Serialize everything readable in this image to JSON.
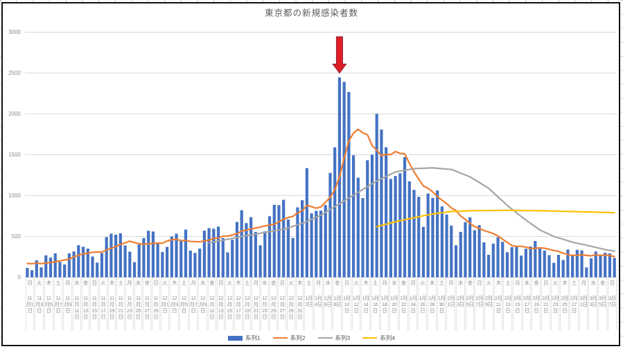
{
  "chart_data": {
    "type": "combo-bar-line",
    "title": "東京都の新規感染者数",
    "y_ticks": [
      0,
      500,
      1000,
      1500,
      2000,
      2500,
      3000
    ],
    "ylim": [
      0,
      3000
    ],
    "n_days": 127,
    "grid_color": "#d9d9d9",
    "axis_text_color": "#8a8a8a",
    "x_labels": [
      [
        "日",
        "11",
        "月1",
        "日"
      ],
      [
        "火",
        "11",
        "月3",
        "日"
      ],
      [
        "木",
        "11",
        "月5",
        "日"
      ],
      [
        "土",
        "11",
        "月7",
        "日"
      ],
      [
        "月",
        "11",
        "月9",
        "日"
      ],
      [
        "水",
        "11",
        "月",
        "11",
        "日"
      ],
      [
        "金",
        "11",
        "月",
        "13",
        "日"
      ],
      [
        "日",
        "11",
        "月",
        "15",
        "日"
      ],
      [
        "火",
        "11",
        "月",
        "17",
        "日"
      ],
      [
        "木",
        "11",
        "月",
        "19",
        "日"
      ],
      [
        "土",
        "11",
        "月",
        "21",
        "日"
      ],
      [
        "月",
        "11",
        "月",
        "23",
        "日"
      ],
      [
        "水",
        "11",
        "月",
        "25",
        "日"
      ],
      [
        "金",
        "11",
        "月",
        "27",
        "日"
      ],
      [
        "日",
        "11",
        "月",
        "29",
        "日"
      ],
      [
        "火",
        "12",
        "月1",
        "日"
      ],
      [
        "木",
        "12",
        "月3",
        "日"
      ],
      [
        "土",
        "12",
        "月5",
        "日"
      ],
      [
        "月",
        "12",
        "月7",
        "日"
      ],
      [
        "水",
        "12",
        "月9",
        "日"
      ],
      [
        "金",
        "12",
        "月",
        "11",
        "日"
      ],
      [
        "日",
        "12",
        "月",
        "13",
        "日"
      ],
      [
        "火",
        "12",
        "月",
        "15",
        "日"
      ],
      [
        "木",
        "12",
        "月",
        "17",
        "日"
      ],
      [
        "土",
        "12",
        "月",
        "19",
        "日"
      ],
      [
        "月",
        "12",
        "月",
        "21",
        "日"
      ],
      [
        "水",
        "12",
        "月",
        "23",
        "日"
      ],
      [
        "金",
        "12",
        "月",
        "25",
        "日"
      ],
      [
        "日",
        "12",
        "月",
        "27",
        "日"
      ],
      [
        "火",
        "12",
        "月",
        "29",
        "日"
      ],
      [
        "木",
        "12",
        "月",
        "31",
        "日"
      ],
      [
        "土",
        "1月",
        "2日"
      ],
      [
        "月",
        "1月",
        "4日"
      ],
      [
        "水",
        "1月",
        "6日"
      ],
      [
        "金",
        "1月",
        "8日"
      ],
      [
        "日",
        "1月",
        "10",
        "日"
      ],
      [
        "火",
        "1月",
        "12",
        "日"
      ],
      [
        "木",
        "1月",
        "14",
        "日"
      ],
      [
        "土",
        "1月",
        "16",
        "日"
      ],
      [
        "月",
        "1月",
        "18",
        "日"
      ],
      [
        "水",
        "1月",
        "20",
        "日"
      ],
      [
        "金",
        "1月",
        "22",
        "日"
      ],
      [
        "日",
        "1月",
        "24",
        "日"
      ],
      [
        "火",
        "1月",
        "26",
        "日"
      ],
      [
        "木",
        "1月",
        "28",
        "日"
      ],
      [
        "土",
        "1月",
        "30",
        "日"
      ],
      [
        "月",
        "2月",
        "1日"
      ],
      [
        "水",
        "2月",
        "3日"
      ],
      [
        "金",
        "2月",
        "5日"
      ],
      [
        "日",
        "2月",
        "7日"
      ],
      [
        "火",
        "2月",
        "9日"
      ],
      [
        "木",
        "2月",
        "11",
        "日"
      ],
      [
        "土",
        "2月",
        "13",
        "日"
      ],
      [
        "月",
        "2月",
        "15",
        "日"
      ],
      [
        "水",
        "2月",
        "17",
        "日"
      ],
      [
        "金",
        "2月",
        "19",
        "日"
      ],
      [
        "日",
        "2月",
        "21",
        "日"
      ],
      [
        "火",
        "2月",
        "23",
        "日"
      ],
      [
        "木",
        "2月",
        "25",
        "日"
      ],
      [
        "土",
        "2月",
        "27",
        "日"
      ],
      [
        "月",
        "3月",
        "1日"
      ],
      [
        "水",
        "3月",
        "3日"
      ],
      [
        "金",
        "3月",
        "5日"
      ],
      [
        "日",
        "3月",
        "7日"
      ]
    ],
    "series": [
      {
        "name": "系列1",
        "type": "bar",
        "color": "#4472C4",
        "start": 0,
        "values": [
          116,
          87,
          209,
          122,
          269,
          242,
          294,
          189,
          157,
          293,
          317,
          393,
          374,
          352,
          255,
          180,
          298,
          493,
          534,
          522,
          539,
          391,
          314,
          186,
          401,
          481,
          570,
          561,
          418,
          311,
          372,
          500,
          533,
          449,
          584,
          327,
          299,
          352,
          572,
          602,
          595,
          621,
          480,
          305,
          460,
          678,
          822,
          664,
          736,
          556,
          392,
          563,
          748,
          888,
          884,
          949,
          708,
          481,
          856,
          944,
          1337,
          783,
          814,
          816,
          884,
          1278,
          1591,
          2447,
          2392,
          2268,
          1494,
          1219,
          970,
          1433,
          1502,
          2001,
          1809,
          1592,
          1204,
          1240,
          1274,
          1471,
          1175,
          1070,
          986,
          618,
          1026,
          973,
          1064,
          868,
          769,
          633,
          393,
          556,
          676,
          734,
          577,
          639,
          429,
          276,
          412,
          491,
          434,
          307,
          369,
          371,
          266,
          350,
          378,
          445,
          353,
          327,
          272,
          178,
          275,
          213,
          340,
          270,
          337,
          329,
          121,
          232,
          316,
          279,
          301,
          293,
          237
        ]
      },
      {
        "name": "系列2",
        "type": "line",
        "color": "#ED7D31",
        "start": 0,
        "values": [
          169,
          167,
          175,
          168,
          174,
          180,
          191,
          202,
          212,
          224,
          252,
          269,
          288,
          296,
          306,
          309,
          310,
          335,
          355,
          376,
          403,
          422,
          442,
          426,
          412,
          405,
          412,
          415,
          419,
          418,
          445,
          459,
          466,
          449,
          452,
          439,
          438,
          435,
          445,
          455,
          476,
          481,
          503,
          504,
          519,
          534,
          566,
          576,
          592,
          603,
          615,
          630,
          640,
          650,
          681,
          711,
          733,
          746,
          788,
          816,
          880,
          865,
          846,
          862,
          919,
          979,
          1072,
          1230,
          1460,
          1668,
          1765,
          1813,
          1769,
          1746,
          1611,
          1555,
          1490,
          1504,
          1502,
          1540,
          1517,
          1513,
          1395,
          1289,
          1203,
          1119,
          1089,
          1046,
          987,
          944,
          901,
          850,
          818,
          751,
          708,
          661,
          620,
          601,
          572,
          555,
          535,
          508,
          465,
          427,
          388,
          380,
          379,
          370,
          354,
          355,
          362,
          356,
          342,
          329,
          318,
          295,
          280,
          268,
          269,
          277,
          269,
          263,
          278,
          269,
          274,
          267,
          254
        ]
      },
      {
        "name": "系列3",
        "type": "line",
        "color": "#A5A5A5",
        "start": 39,
        "values": [
          420,
          431,
          443,
          454,
          465,
          476,
          488,
          499,
          510,
          520,
          530,
          540,
          550,
          560,
          570,
          580,
          590,
          608,
          625,
          643,
          660,
          685,
          710,
          735,
          760,
          795,
          830,
          865,
          900,
          935,
          970,
          1005,
          1040,
          1075,
          1110,
          1145,
          1180,
          1208,
          1235,
          1263,
          1290,
          1300,
          1310,
          1320,
          1330,
          1333,
          1335,
          1338,
          1340,
          1335,
          1330,
          1325,
          1320,
          1298,
          1275,
          1253,
          1230,
          1195,
          1160,
          1125,
          1090,
          1038,
          985,
          933,
          880,
          835,
          790,
          745,
          700,
          660,
          620,
          580,
          553,
          527,
          500,
          483,
          465,
          448,
          430,
          418,
          405,
          393,
          380,
          367,
          353,
          340,
          330,
          320
        ]
      },
      {
        "name": "系列4",
        "type": "line",
        "color": "#FFC000",
        "start": 75,
        "values": [
          620,
          635,
          650,
          665,
          680,
          693,
          705,
          718,
          730,
          741,
          753,
          764,
          775,
          783,
          790,
          798,
          805,
          808,
          810,
          813,
          815,
          816,
          816,
          817,
          818,
          818,
          819,
          819,
          820,
          819,
          819,
          818,
          817,
          817,
          816,
          815,
          814,
          812,
          811,
          809,
          808,
          806,
          805,
          804,
          802,
          801,
          800,
          798,
          796,
          794,
          792,
          790
        ]
      }
    ],
    "annotation": {
      "shape": "down-arrow",
      "day_index": 67,
      "peak_value": 2447,
      "fill": "#e01e26",
      "outline": "#8c1f2d"
    }
  }
}
